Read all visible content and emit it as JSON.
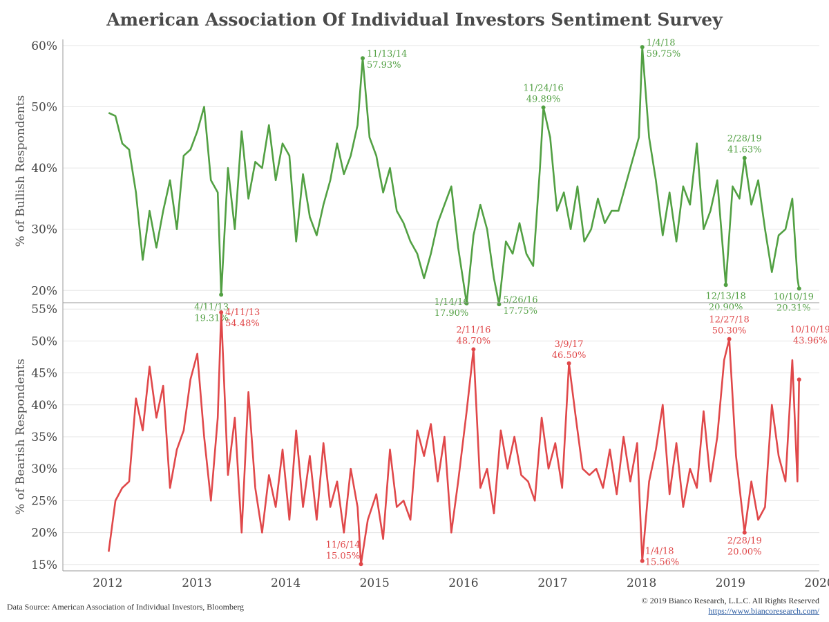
{
  "title": "American Association Of Individual Investors Sentiment Survey",
  "footer": {
    "source": "Data Source: American Association of Individual Investors, Bloomberg",
    "copyright": "© 2019 Bianco Research, L.L.C. All Rights Reserved",
    "url": "https://www.biancoresearch.com/"
  },
  "colors": {
    "bull": "#52a043",
    "bear": "#e0484a",
    "grid": "#e6e6e6",
    "axis": "#888888"
  },
  "chart_data": [
    {
      "type": "line",
      "ylabel": "% of Bullish Respondents",
      "ylim": [
        18,
        61
      ],
      "yticks": [
        20,
        30,
        40,
        50,
        60
      ],
      "ytick_labels": [
        "20%",
        "30%",
        "40%",
        "50%",
        "60%"
      ],
      "grid": true,
      "x": [
        "2012-01-05",
        "2012-02-02",
        "2012-03-01",
        "2012-03-29",
        "2012-04-26",
        "2012-05-24",
        "2012-06-21",
        "2012-07-19",
        "2012-08-16",
        "2012-09-13",
        "2012-10-11",
        "2012-11-08",
        "2012-12-06",
        "2013-01-03",
        "2013-01-31",
        "2013-02-28",
        "2013-03-28",
        "2013-04-11",
        "2013-05-09",
        "2013-06-06",
        "2013-07-04",
        "2013-08-01",
        "2013-08-29",
        "2013-09-26",
        "2013-10-24",
        "2013-11-21",
        "2013-12-19",
        "2014-01-16",
        "2014-02-13",
        "2014-03-13",
        "2014-04-10",
        "2014-05-08",
        "2014-06-05",
        "2014-07-03",
        "2014-07-31",
        "2014-08-28",
        "2014-09-25",
        "2014-10-23",
        "2014-11-13",
        "2014-12-11",
        "2015-01-08",
        "2015-02-05",
        "2015-03-05",
        "2015-04-02",
        "2015-04-30",
        "2015-05-28",
        "2015-06-25",
        "2015-07-23",
        "2015-08-20",
        "2015-09-17",
        "2015-10-15",
        "2015-11-12",
        "2015-12-10",
        "2016-01-14",
        "2016-02-11",
        "2016-03-10",
        "2016-04-07",
        "2016-05-05",
        "2016-05-26",
        "2016-06-23",
        "2016-07-21",
        "2016-08-18",
        "2016-09-15",
        "2016-10-13",
        "2016-11-10",
        "2016-11-24",
        "2016-12-22",
        "2017-01-19",
        "2017-02-16",
        "2017-03-16",
        "2017-04-13",
        "2017-05-11",
        "2017-06-08",
        "2017-07-06",
        "2017-08-03",
        "2017-08-31",
        "2017-09-28",
        "2017-10-26",
        "2017-11-23",
        "2017-12-21",
        "2018-01-04",
        "2018-02-01",
        "2018-03-01",
        "2018-03-29",
        "2018-04-26",
        "2018-05-24",
        "2018-06-21",
        "2018-07-19",
        "2018-08-16",
        "2018-09-13",
        "2018-10-11",
        "2018-11-08",
        "2018-12-13",
        "2019-01-10",
        "2019-02-07",
        "2019-02-28",
        "2019-03-28",
        "2019-04-25",
        "2019-05-23",
        "2019-06-20",
        "2019-07-18",
        "2019-08-15",
        "2019-09-12",
        "2019-10-03",
        "2019-10-10"
      ],
      "series": [
        {
          "values": [
            49.0,
            48.5,
            44.0,
            43.0,
            36.0,
            25.0,
            33.0,
            27.0,
            33.0,
            38.0,
            30.0,
            42.0,
            43.0,
            46.0,
            50.0,
            38.0,
            36.0,
            19.31,
            40.0,
            30.0,
            46.0,
            35.0,
            41.0,
            40.0,
            47.0,
            38.0,
            44.0,
            42.0,
            28.0,
            39.0,
            32.0,
            29.0,
            34.0,
            38.0,
            44.0,
            39.0,
            42.0,
            47.0,
            57.93,
            45.0,
            42.0,
            36.0,
            40.0,
            33.0,
            31.0,
            28.0,
            26.0,
            22.0,
            26.0,
            31.0,
            34.0,
            37.0,
            27.0,
            17.9,
            29.0,
            34.0,
            30.0,
            22.0,
            17.75,
            28.0,
            26.0,
            31.0,
            26.0,
            24.0,
            40.0,
            49.89,
            45.0,
            33.0,
            36.0,
            30.0,
            37.0,
            28.0,
            30.0,
            35.0,
            31.0,
            33.0,
            33.0,
            37.0,
            41.0,
            45.0,
            59.75,
            45.0,
            38.0,
            29.0,
            36.0,
            28.0,
            37.0,
            34.0,
            44.0,
            30.0,
            33.0,
            38.0,
            20.9,
            37.0,
            35.0,
            41.63,
            34.0,
            38.0,
            30.0,
            23.0,
            29.0,
            30.0,
            35.0,
            22.0,
            20.31
          ]
        }
      ],
      "annotations": [
        {
          "date": "4/11/13",
          "value": "19.31%"
        },
        {
          "date": "11/13/14",
          "value": "57.93%"
        },
        {
          "date": "1/14/16",
          "value": "17.90%"
        },
        {
          "date": "5/26/16",
          "value": "17.75%"
        },
        {
          "date": "11/24/16",
          "value": "49.89%"
        },
        {
          "date": "1/4/18",
          "value": "59.75%"
        },
        {
          "date": "12/13/18",
          "value": "20.90%"
        },
        {
          "date": "2/28/19",
          "value": "41.63%"
        },
        {
          "date": "10/10/19",
          "value": "20.31%"
        }
      ]
    },
    {
      "type": "line",
      "ylabel": "% of Bearish Respondents",
      "ylim": [
        14,
        56
      ],
      "yticks": [
        15,
        20,
        25,
        30,
        35,
        40,
        45,
        50,
        55
      ],
      "ytick_labels": [
        "15%",
        "20%",
        "25%",
        "30%",
        "35%",
        "40%",
        "45%",
        "50%",
        "55%"
      ],
      "grid": true,
      "xlim": [
        "2011-07-01",
        "2020-01-01"
      ],
      "xtick_labels": [
        "2012",
        "2013",
        "2014",
        "2015",
        "2016",
        "2017",
        "2018",
        "2019",
        "2020"
      ],
      "x": [
        "2012-01-05",
        "2012-02-02",
        "2012-03-01",
        "2012-03-29",
        "2012-04-26",
        "2012-05-24",
        "2012-06-21",
        "2012-07-19",
        "2012-08-16",
        "2012-09-13",
        "2012-10-11",
        "2012-11-08",
        "2012-12-06",
        "2013-01-03",
        "2013-01-31",
        "2013-02-28",
        "2013-03-28",
        "2013-04-11",
        "2013-05-09",
        "2013-06-06",
        "2013-07-04",
        "2013-08-01",
        "2013-08-29",
        "2013-09-26",
        "2013-10-24",
        "2013-11-21",
        "2013-12-19",
        "2014-01-16",
        "2014-02-13",
        "2014-03-13",
        "2014-04-10",
        "2014-05-08",
        "2014-06-05",
        "2014-07-03",
        "2014-07-31",
        "2014-08-28",
        "2014-09-25",
        "2014-10-23",
        "2014-11-06",
        "2014-12-04",
        "2015-01-08",
        "2015-02-05",
        "2015-03-05",
        "2015-04-02",
        "2015-04-30",
        "2015-05-28",
        "2015-06-25",
        "2015-07-23",
        "2015-08-20",
        "2015-09-17",
        "2015-10-15",
        "2015-11-12",
        "2015-12-10",
        "2016-01-14",
        "2016-02-11",
        "2016-03-10",
        "2016-04-07",
        "2016-05-05",
        "2016-06-02",
        "2016-06-30",
        "2016-07-28",
        "2016-08-25",
        "2016-09-22",
        "2016-10-20",
        "2016-11-17",
        "2016-12-15",
        "2017-01-12",
        "2017-02-09",
        "2017-03-09",
        "2017-04-06",
        "2017-05-04",
        "2017-06-01",
        "2017-06-29",
        "2017-07-27",
        "2017-08-24",
        "2017-09-21",
        "2017-10-19",
        "2017-11-16",
        "2017-12-14",
        "2018-01-04",
        "2018-02-01",
        "2018-03-01",
        "2018-03-29",
        "2018-04-26",
        "2018-05-24",
        "2018-06-21",
        "2018-07-19",
        "2018-08-16",
        "2018-09-13",
        "2018-10-11",
        "2018-11-08",
        "2018-12-06",
        "2018-12-27",
        "2019-01-24",
        "2019-02-28",
        "2019-03-28",
        "2019-04-25",
        "2019-05-23",
        "2019-06-20",
        "2019-07-18",
        "2019-08-15",
        "2019-09-12",
        "2019-10-03",
        "2019-10-10"
      ],
      "series": [
        {
          "values": [
            17.0,
            25.0,
            27.0,
            28.0,
            41.0,
            36.0,
            46.0,
            38.0,
            43.0,
            27.0,
            33.0,
            36.0,
            44.0,
            48.0,
            35.0,
            25.0,
            38.0,
            54.48,
            29.0,
            38.0,
            20.0,
            42.0,
            27.0,
            20.0,
            29.0,
            24.0,
            33.0,
            22.0,
            36.0,
            24.0,
            32.0,
            22.0,
            34.0,
            24.0,
            28.0,
            20.0,
            30.0,
            24.0,
            15.05,
            22.0,
            26.0,
            19.0,
            33.0,
            24.0,
            25.0,
            22.0,
            36.0,
            32.0,
            37.0,
            28.0,
            35.0,
            20.0,
            28.0,
            39.0,
            48.7,
            27.0,
            30.0,
            23.0,
            36.0,
            30.0,
            35.0,
            29.0,
            28.0,
            25.0,
            38.0,
            30.0,
            34.0,
            27.0,
            46.5,
            38.0,
            30.0,
            29.0,
            30.0,
            27.0,
            33.0,
            26.0,
            35.0,
            28.0,
            34.0,
            15.56,
            28.0,
            33.0,
            40.0,
            26.0,
            34.0,
            24.0,
            30.0,
            27.0,
            39.0,
            28.0,
            35.0,
            47.0,
            50.3,
            32.0,
            20.0,
            28.0,
            22.0,
            24.0,
            40.0,
            32.0,
            28.0,
            47.0,
            28.0,
            43.96
          ]
        }
      ],
      "annotations": [
        {
          "date": "4/11/13",
          "value": "54.48%"
        },
        {
          "date": "11/6/14",
          "value": "15.05%"
        },
        {
          "date": "2/11/16",
          "value": "48.70%"
        },
        {
          "date": "3/9/17",
          "value": "46.50%"
        },
        {
          "date": "1/4/18",
          "value": "15.56%"
        },
        {
          "date": "12/27/18",
          "value": "50.30%"
        },
        {
          "date": "2/28/19",
          "value": "20.00%"
        },
        {
          "date": "10/10/19",
          "value": "43.96%"
        }
      ]
    }
  ]
}
